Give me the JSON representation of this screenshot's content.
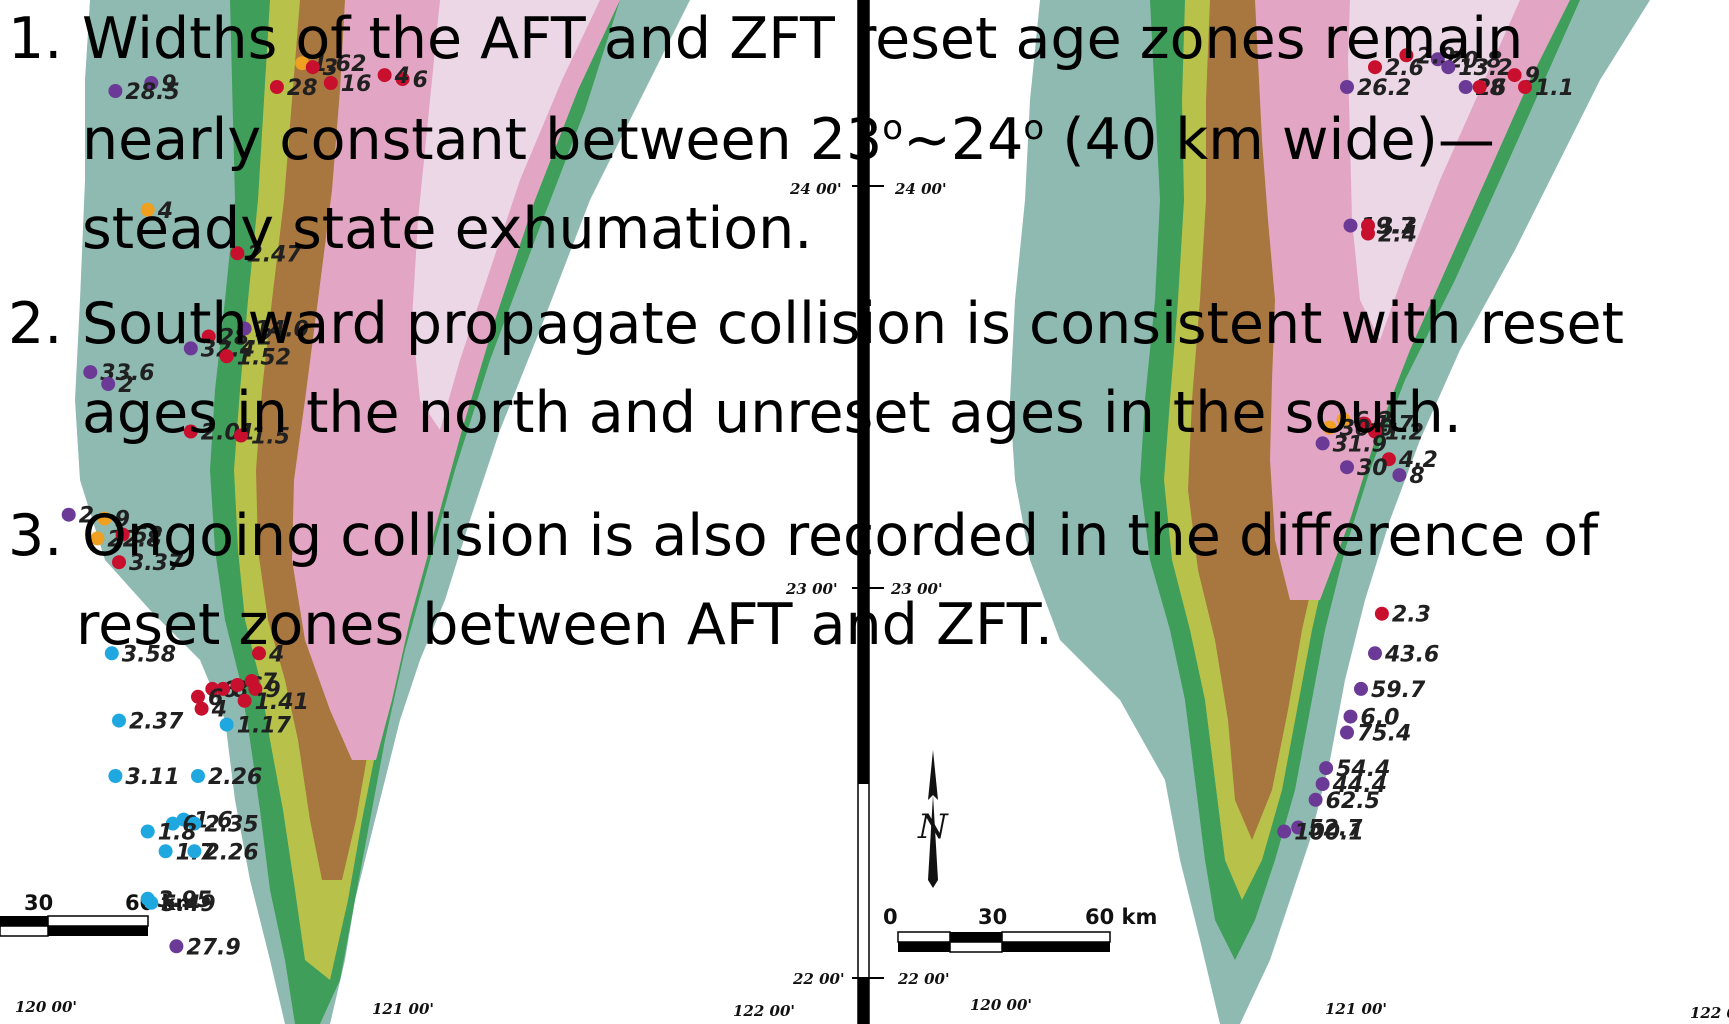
{
  "statements": [
    {
      "number": "1.",
      "line1": "Widths of the AFT and ZFT reset age zones remain",
      "line2_pre": "nearly constant between 23",
      "sup_a": "o",
      "line2_mid": "~24",
      "sup_b": "o",
      "line2_post": " (40 km wide)—",
      "line3": "steady state  exhumation."
    },
    {
      "number": "2.",
      "line1": "Southward propagate collision is consistent with reset",
      "line2": "ages in the north and unreset ages in the south."
    },
    {
      "number": "3.",
      "line1": "Ongoing collision is also recorded in the difference of",
      "line2": "reset zones between AFT and ZFT."
    }
  ],
  "colors": {
    "sea": "#ffffff",
    "coastal_plain": "#8fbab1",
    "lowland_green": "#3e9e5a",
    "foothill_yellow": "#b8c24a",
    "hill_brown": "#a8763f",
    "mountain_pink": "#e2a6c4",
    "summit_light": "#ebd7e6",
    "reset_age": "#c8102e",
    "unreset_age": "#6a3a96",
    "partial_reset": "#f0a020",
    "zft_south": "#1fa8e0",
    "divider": "#000000"
  },
  "map_aft": {
    "coordinate_labels": [
      "120  00'",
      "121  00'",
      "122  00'",
      "24  00'",
      "23  00'",
      "22  00'"
    ],
    "scale_bar": {
      "labels": [
        "30",
        "60 km"
      ]
    },
    "points": [
      {
        "label": "1.62",
        "kind": "partial",
        "lon": 120.73,
        "lat": 24.31
      },
      {
        "label": "3",
        "kind": "reset",
        "lon": 120.76,
        "lat": 24.3
      },
      {
        "label": "6",
        "kind": "reset",
        "lon": 121.01,
        "lat": 24.27
      },
      {
        "label": "4",
        "kind": "reset",
        "lon": 120.96,
        "lat": 24.28
      },
      {
        "label": "9",
        "kind": "unreset",
        "lon": 120.31,
        "lat": 24.26
      },
      {
        "label": "28.5",
        "kind": "unreset",
        "lon": 120.21,
        "lat": 24.24
      },
      {
        "label": "28",
        "kind": "reset",
        "lon": 120.66,
        "lat": 24.25
      },
      {
        "label": "16",
        "kind": "reset",
        "lon": 120.81,
        "lat": 24.26
      },
      {
        "label": "4",
        "kind": "partial",
        "lon": 120.3,
        "lat": 23.94
      },
      {
        "label": "2.47",
        "kind": "reset",
        "lon": 120.55,
        "lat": 23.83
      },
      {
        "label": "28.2",
        "kind": "reset",
        "lon": 120.47,
        "lat": 23.62
      },
      {
        "label": "32.4",
        "kind": "unreset",
        "lon": 120.42,
        "lat": 23.59
      },
      {
        "label": "33.6",
        "kind": "unreset",
        "lon": 120.14,
        "lat": 23.53
      },
      {
        "label": "2",
        "kind": "unreset",
        "lon": 120.19,
        "lat": 23.5
      },
      {
        "label": "1.52",
        "kind": "reset",
        "lon": 120.52,
        "lat": 23.57
      },
      {
        "label": "14.0",
        "kind": "unreset",
        "lon": 120.57,
        "lat": 23.64
      },
      {
        "label": "2.01",
        "kind": "reset",
        "lon": 120.42,
        "lat": 23.38
      },
      {
        "label": "1.5",
        "kind": "reset",
        "lon": 120.56,
        "lat": 23.37
      },
      {
        "label": "2",
        "kind": "unreset",
        "lon": 120.08,
        "lat": 23.17
      },
      {
        "label": "9",
        "kind": "partial",
        "lon": 120.18,
        "lat": 23.16
      },
      {
        "label": "22.8",
        "kind": "partial",
        "lon": 120.16,
        "lat": 23.11
      },
      {
        "label": "52",
        "kind": "reset",
        "lon": 120.23,
        "lat": 23.12
      },
      {
        "label": "3.37",
        "kind": "reset",
        "lon": 120.22,
        "lat": 23.05
      },
      {
        "label": "3.58",
        "kind": "zft",
        "lon": 120.2,
        "lat": 22.82
      },
      {
        "label": "4",
        "kind": "reset",
        "lon": 120.61,
        "lat": 22.82
      },
      {
        "label": "6",
        "kind": "reset",
        "lon": 120.48,
        "lat": 22.73
      },
      {
        "label": "8",
        "kind": "reset",
        "lon": 120.51,
        "lat": 22.73
      },
      {
        "label": "6",
        "kind": "reset",
        "lon": 120.55,
        "lat": 22.74
      },
      {
        "label": "7",
        "kind": "reset",
        "lon": 120.59,
        "lat": 22.75
      },
      {
        "label": "9",
        "kind": "reset",
        "lon": 120.6,
        "lat": 22.73
      },
      {
        "label": "6",
        "kind": "reset",
        "lon": 120.44,
        "lat": 22.71
      },
      {
        "label": "4",
        "kind": "reset",
        "lon": 120.45,
        "lat": 22.68
      },
      {
        "label": "1.41",
        "kind": "reset",
        "lon": 120.57,
        "lat": 22.7
      },
      {
        "label": "2.37",
        "kind": "zft",
        "lon": 120.22,
        "lat": 22.65
      },
      {
        "label": "1.17",
        "kind": "zft",
        "lon": 120.52,
        "lat": 22.64
      },
      {
        "label": "3.11",
        "kind": "zft",
        "lon": 120.21,
        "lat": 22.51
      },
      {
        "label": "2.26",
        "kind": "zft",
        "lon": 120.44,
        "lat": 22.51
      },
      {
        "label": "1.6",
        "kind": "zft",
        "lon": 120.4,
        "lat": 22.4
      },
      {
        "label": "0",
        "kind": "zft",
        "lon": 120.37,
        "lat": 22.39
      },
      {
        "label": "2.35",
        "kind": "zft",
        "lon": 120.43,
        "lat": 22.39
      },
      {
        "label": "1.8",
        "kind": "zft",
        "lon": 120.3,
        "lat": 22.37
      },
      {
        "label": "1.7",
        "kind": "zft",
        "lon": 120.35,
        "lat": 22.32
      },
      {
        "label": "2.26",
        "kind": "zft",
        "lon": 120.43,
        "lat": 22.32
      },
      {
        "label": "3.95",
        "kind": "zft",
        "lon": 120.3,
        "lat": 22.2
      },
      {
        "label": "5.49",
        "kind": "zft",
        "lon": 120.31,
        "lat": 22.19
      },
      {
        "label": "27.9",
        "kind": "unreset",
        "lon": 120.38,
        "lat": 22.08
      }
    ]
  },
  "map_zft": {
    "coordinate_labels": [
      "24  00'",
      "23  00'",
      "22  00'",
      "120  00'",
      "121  00'",
      "122  00'"
    ],
    "scale_bar": {
      "labels": [
        "0",
        "30",
        "60 km"
      ]
    },
    "north_label": "N",
    "points": [
      {
        "label": "20.8",
        "kind": "unreset",
        "lon": 121.22,
        "lat": 24.32
      },
      {
        "label": "2.9",
        "kind": "reset",
        "lon": 121.13,
        "lat": 24.33
      },
      {
        "label": "13.2",
        "kind": "unreset",
        "lon": 121.25,
        "lat": 24.3
      },
      {
        "label": "2.6",
        "kind": "reset",
        "lon": 121.04,
        "lat": 24.3
      },
      {
        "label": "9",
        "kind": "reset",
        "lon": 121.44,
        "lat": 24.28
      },
      {
        "label": "1.1",
        "kind": "reset",
        "lon": 121.47,
        "lat": 24.25
      },
      {
        "label": "26.2",
        "kind": "unreset",
        "lon": 120.96,
        "lat": 24.25
      },
      {
        "label": "26",
        "kind": "unreset",
        "lon": 121.3,
        "lat": 24.25
      },
      {
        "label": "8",
        "kind": "reset",
        "lon": 121.34,
        "lat": 24.25
      },
      {
        "label": "19.7",
        "kind": "unreset",
        "lon": 120.97,
        "lat": 23.9
      },
      {
        "label": "3.3",
        "kind": "reset",
        "lon": 121.02,
        "lat": 23.9
      },
      {
        "label": "2.4",
        "kind": "reset",
        "lon": 121.02,
        "lat": 23.88
      },
      {
        "label": "6.2",
        "kind": "partial",
        "lon": 120.95,
        "lat": 23.41
      },
      {
        "label": "1.7",
        "kind": "reset",
        "lon": 121.01,
        "lat": 23.4
      },
      {
        "label": "30.0",
        "kind": "partial",
        "lon": 120.91,
        "lat": 23.39
      },
      {
        "label": "1.2",
        "kind": "reset",
        "lon": 121.04,
        "lat": 23.38
      },
      {
        "label": "31.9",
        "kind": "unreset",
        "lon": 120.89,
        "lat": 23.35
      },
      {
        "label": "4.2",
        "kind": "reset",
        "lon": 121.08,
        "lat": 23.31
      },
      {
        "label": "30",
        "kind": "unreset",
        "lon": 120.96,
        "lat": 23.29
      },
      {
        "label": "8",
        "kind": "unreset",
        "lon": 121.11,
        "lat": 23.27
      },
      {
        "label": "2.3",
        "kind": "reset",
        "lon": 121.06,
        "lat": 22.92
      },
      {
        "label": "43.6",
        "kind": "unreset",
        "lon": 121.04,
        "lat": 22.82
      },
      {
        "label": "59.7",
        "kind": "unreset",
        "lon": 121.0,
        "lat": 22.73
      },
      {
        "label": "6.0",
        "kind": "unreset",
        "lon": 120.97,
        "lat": 22.66
      },
      {
        "label": "75.4",
        "kind": "unreset",
        "lon": 120.96,
        "lat": 22.62
      },
      {
        "label": "54.4",
        "kind": "unreset",
        "lon": 120.9,
        "lat": 22.53
      },
      {
        "label": "44.4",
        "kind": "unreset",
        "lon": 120.89,
        "lat": 22.49
      },
      {
        "label": "62.5",
        "kind": "unreset",
        "lon": 120.87,
        "lat": 22.45
      },
      {
        "label": "52.7",
        "kind": "unreset",
        "lon": 120.82,
        "lat": 22.38
      },
      {
        "label": "100.1",
        "kind": "unreset",
        "lon": 120.78,
        "lat": 22.37
      }
    ]
  }
}
